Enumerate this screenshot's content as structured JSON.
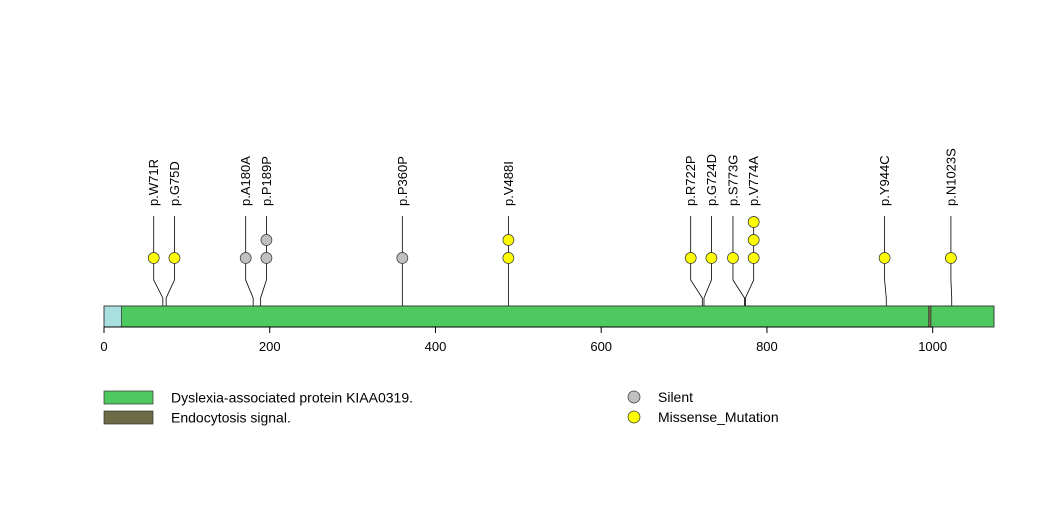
{
  "axis": {
    "min": 0,
    "max": 1074,
    "ticks": [
      0,
      200,
      400,
      600,
      800,
      1000
    ]
  },
  "domains": [
    {
      "name": "Dyslexia-associated protein KIAA0319.",
      "start": 21,
      "end": 1074,
      "color": "#4dc95f"
    },
    {
      "name": "Endocytosis signal.",
      "start": 995,
      "end": 998,
      "color": "#6b6b45"
    }
  ],
  "signal_region": {
    "start": 0,
    "end": 21,
    "color": "#a8e0e0"
  },
  "mutations": [
    {
      "label": "p.W71R",
      "position": 71,
      "display_slot": 60,
      "counts": [
        {
          "type": "Missense_Mutation",
          "n": 1
        }
      ]
    },
    {
      "label": "p.G75D",
      "position": 75,
      "display_slot": 85,
      "counts": [
        {
          "type": "Missense_Mutation",
          "n": 1
        }
      ]
    },
    {
      "label": "p.A180A",
      "position": 180,
      "display_slot": 171,
      "counts": [
        {
          "type": "Silent",
          "n": 1
        }
      ]
    },
    {
      "label": "p.P189P",
      "position": 189,
      "display_slot": 196,
      "counts": [
        {
          "type": "Silent",
          "n": 2
        }
      ]
    },
    {
      "label": "p.P360P",
      "position": 360,
      "display_slot": 360,
      "counts": [
        {
          "type": "Silent",
          "n": 1
        }
      ]
    },
    {
      "label": "p.V488I",
      "position": 488,
      "display_slot": 488,
      "counts": [
        {
          "type": "Missense_Mutation",
          "n": 2
        }
      ]
    },
    {
      "label": "p.R722P",
      "position": 722,
      "display_slot": 708,
      "counts": [
        {
          "type": "Missense_Mutation",
          "n": 1
        }
      ]
    },
    {
      "label": "p.G724D",
      "position": 724,
      "display_slot": 733,
      "counts": [
        {
          "type": "Missense_Mutation",
          "n": 1
        }
      ]
    },
    {
      "label": "p.S773G",
      "position": 773,
      "display_slot": 759,
      "counts": [
        {
          "type": "Missense_Mutation",
          "n": 1
        }
      ]
    },
    {
      "label": "p.V774A",
      "position": 774,
      "display_slot": 784,
      "counts": [
        {
          "type": "Missense_Mutation",
          "n": 3
        }
      ]
    },
    {
      "label": "p.Y944C",
      "position": 944,
      "display_slot": 942,
      "counts": [
        {
          "type": "Missense_Mutation",
          "n": 1
        }
      ]
    },
    {
      "label": "p.N1023S",
      "position": 1023,
      "display_slot": 1022,
      "counts": [
        {
          "type": "Missense_Mutation",
          "n": 1
        }
      ]
    }
  ],
  "legend": {
    "domains": [
      {
        "label": "Dyslexia-associated protein KIAA0319.",
        "color": "#4dc95f"
      },
      {
        "label": "Endocytosis signal.",
        "color": "#6b6b45"
      }
    ],
    "mutation_types": [
      {
        "label": "Silent",
        "color": "#c0c0c0"
      },
      {
        "label": "Missense_Mutation",
        "color": "#ffff00"
      }
    ]
  }
}
